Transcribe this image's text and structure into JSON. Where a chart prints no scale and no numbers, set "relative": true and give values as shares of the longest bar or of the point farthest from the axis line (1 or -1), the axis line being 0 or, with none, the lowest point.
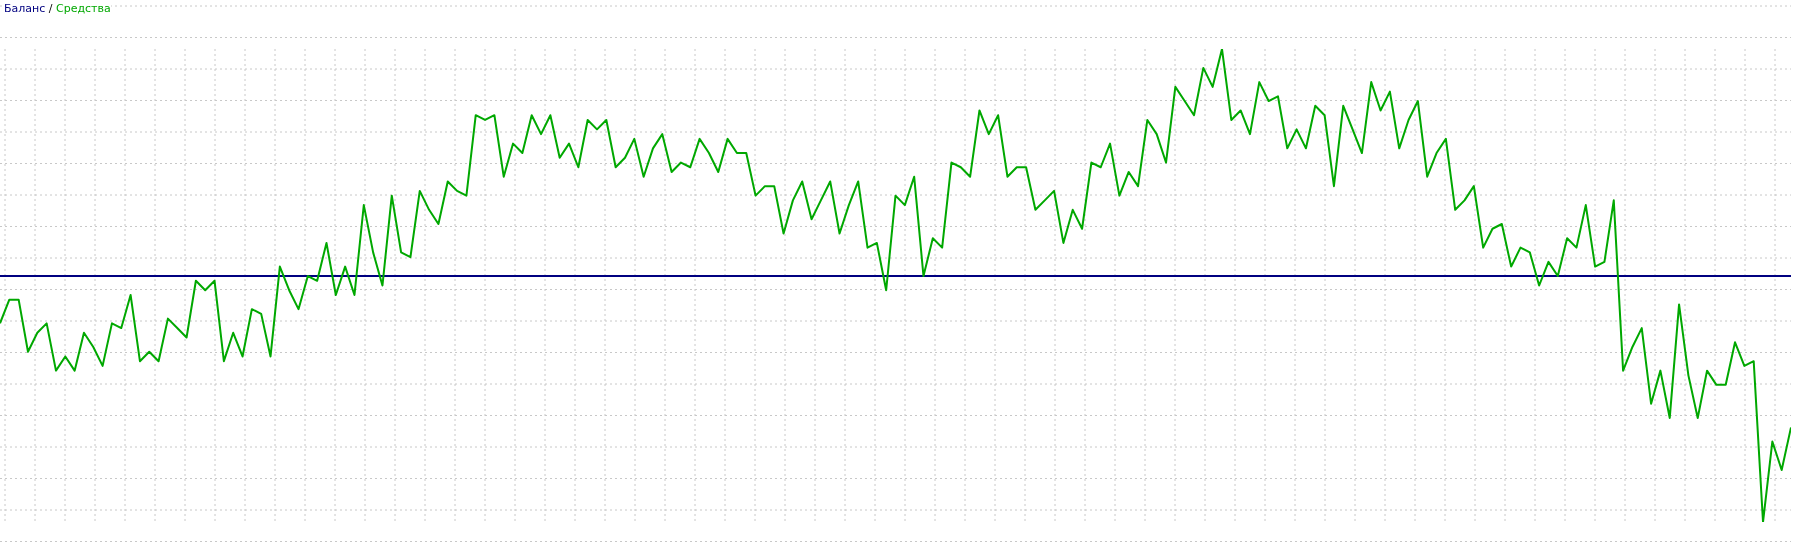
{
  "chart_data": {
    "type": "line",
    "relative": true,
    "grid": true,
    "legend": "top left",
    "marker": "none",
    "annotations": [
      "/"
    ],
    "line_style": "solid",
    "categories": [
      null,
      null,
      null,
      null,
      null,
      null,
      null,
      null,
      null,
      null,
      null,
      null,
      null,
      null,
      null,
      null,
      null,
      null,
      null,
      null,
      null,
      null,
      null,
      null,
      null,
      null,
      null,
      null,
      null,
      null,
      null,
      null,
      null,
      null,
      null,
      null,
      null,
      null,
      null,
      null,
      null,
      null,
      null,
      null,
      null,
      null,
      null,
      null,
      null,
      null,
      null,
      null,
      null,
      null,
      null,
      null,
      null,
      null,
      null,
      null,
      null,
      null,
      null,
      null,
      null,
      null,
      null,
      null,
      null,
      null,
      null,
      null,
      null,
      null,
      null,
      null,
      null,
      null,
      null,
      null,
      null,
      null,
      null,
      null,
      null,
      null,
      null,
      null,
      null,
      null,
      null,
      null,
      null,
      null,
      null,
      null,
      null,
      null,
      null,
      null,
      null,
      null,
      null,
      null,
      null,
      null,
      null,
      null,
      null,
      null,
      null,
      null,
      null,
      null,
      null,
      null,
      null,
      null,
      null,
      null,
      null,
      null,
      null,
      null,
      null,
      null,
      null,
      null,
      null,
      null,
      null,
      null,
      null,
      null,
      null,
      null,
      null,
      null,
      null,
      null,
      null,
      null,
      null,
      null,
      null,
      null,
      null,
      null,
      null,
      null,
      null,
      null,
      null,
      null,
      null,
      null,
      null,
      null,
      null,
      null,
      null,
      null,
      null,
      null,
      null,
      null,
      null,
      null,
      null,
      null,
      null,
      null,
      null,
      null,
      null,
      null,
      null,
      null,
      null,
      null,
      null,
      null,
      null,
      null,
      null,
      null,
      null,
      null,
      null,
      null,
      null,
      null,
      null
    ],
    "series": [
      {
        "name": "Баланс",
        "color": "#000080",
        "values": [
          0.52,
          0.52,
          0.52,
          0.52,
          0.52,
          0.52,
          0.52,
          0.52,
          0.52,
          0.52,
          0.52,
          0.52,
          0.52,
          0.52,
          0.52,
          0.52,
          0.52,
          0.52,
          0.52,
          0.52,
          0.52,
          0.52,
          0.52,
          0.52,
          0.52,
          0.52,
          0.52,
          0.52,
          0.52,
          0.52,
          0.52,
          0.52,
          0.52,
          0.52,
          0.52,
          0.52,
          0.52,
          0.52,
          0.52,
          0.52,
          0.52,
          0.52,
          0.52,
          0.52,
          0.52,
          0.52,
          0.52,
          0.52,
          0.52,
          0.52,
          0.52,
          0.52,
          0.52,
          0.52,
          0.52,
          0.52,
          0.52,
          0.52,
          0.52,
          0.52,
          0.52,
          0.52,
          0.52,
          0.52,
          0.52,
          0.52,
          0.52,
          0.52,
          0.52,
          0.52,
          0.52,
          0.52,
          0.52,
          0.52,
          0.52,
          0.52,
          0.52,
          0.52,
          0.52,
          0.52,
          0.52,
          0.52,
          0.52,
          0.52,
          0.52,
          0.52,
          0.52,
          0.52,
          0.52,
          0.52,
          0.52,
          0.52,
          0.52,
          0.52,
          0.52,
          0.52,
          0.52,
          0.52,
          0.52,
          0.52,
          0.52,
          0.52,
          0.52,
          0.52,
          0.52,
          0.52,
          0.52,
          0.52,
          0.52,
          0.52,
          0.52,
          0.52,
          0.52,
          0.52,
          0.52,
          0.52,
          0.52,
          0.52,
          0.52,
          0.52,
          0.52,
          0.52,
          0.52,
          0.52,
          0.52,
          0.52,
          0.52,
          0.52,
          0.52,
          0.52,
          0.52,
          0.52,
          0.52,
          0.52,
          0.52,
          0.52,
          0.52,
          0.52,
          0.52,
          0.52,
          0.52,
          0.52,
          0.52,
          0.52,
          0.52,
          0.52,
          0.52,
          0.52,
          0.52,
          0.52,
          0.52,
          0.52,
          0.52,
          0.52,
          0.52,
          0.52,
          0.52,
          0.52,
          0.52,
          0.52,
          0.52,
          0.52,
          0.52,
          0.52,
          0.52,
          0.52,
          0.52,
          0.52,
          0.52,
          0.52,
          0.52,
          0.52,
          0.52,
          0.52,
          0.52,
          0.52,
          0.52,
          0.52,
          0.52,
          0.52,
          0.52,
          0.52,
          0.52,
          0.52,
          0.52,
          0.52,
          0.52,
          0.52,
          0.52,
          0.52,
          0.52,
          0.52,
          0.52
        ]
      },
      {
        "name": "Средства",
        "color": "#00a800",
        "values": [
          0.42,
          0.47,
          0.47,
          0.36,
          0.4,
          0.42,
          0.32,
          0.35,
          0.32,
          0.4,
          0.37,
          0.33,
          0.42,
          0.41,
          0.48,
          0.34,
          0.36,
          0.34,
          0.43,
          0.41,
          0.39,
          0.51,
          0.49,
          0.51,
          0.34,
          0.4,
          0.35,
          0.45,
          0.44,
          0.35,
          0.54,
          0.49,
          0.45,
          0.52,
          0.51,
          0.59,
          0.48,
          0.54,
          0.48,
          0.67,
          0.57,
          0.5,
          0.69,
          0.57,
          0.56,
          0.7,
          0.66,
          0.63,
          0.72,
          0.7,
          0.69,
          0.86,
          0.85,
          0.86,
          0.73,
          0.8,
          0.78,
          0.86,
          0.82,
          0.86,
          0.77,
          0.8,
          0.75,
          0.85,
          0.83,
          0.85,
          0.75,
          0.77,
          0.81,
          0.73,
          0.79,
          0.82,
          0.74,
          0.76,
          0.75,
          0.81,
          0.78,
          0.74,
          0.81,
          0.78,
          0.78,
          0.69,
          0.71,
          0.71,
          0.61,
          0.68,
          0.72,
          0.64,
          0.68,
          0.72,
          0.61,
          0.67,
          0.72,
          0.58,
          0.59,
          0.49,
          0.69,
          0.67,
          0.73,
          0.52,
          0.6,
          0.58,
          0.76,
          0.75,
          0.73,
          0.87,
          0.82,
          0.86,
          0.73,
          0.75,
          0.75,
          0.66,
          0.68,
          0.7,
          0.59,
          0.66,
          0.62,
          0.76,
          0.75,
          0.8,
          0.69,
          0.74,
          0.71,
          0.85,
          0.82,
          0.76,
          0.92,
          0.89,
          0.86,
          0.96,
          0.92,
          1,
          0.85,
          0.87,
          0.82,
          0.93,
          0.89,
          0.9,
          0.79,
          0.83,
          0.79,
          0.88,
          0.86,
          0.71,
          0.88,
          0.83,
          0.78,
          0.93,
          0.87,
          0.91,
          0.79,
          0.85,
          0.89,
          0.73,
          0.78,
          0.81,
          0.66,
          0.68,
          0.71,
          0.58,
          0.62,
          0.63,
          0.54,
          0.58,
          0.57,
          0.5,
          0.55,
          0.52,
          0.6,
          0.58,
          0.67,
          0.54,
          0.55,
          0.68,
          0.32,
          0.37,
          0.41,
          0.25,
          0.32,
          0.22,
          0.46,
          0.31,
          0.22,
          0.32,
          0.29,
          0.29,
          0.38,
          0.33,
          0.34,
          0,
          0.17,
          0.11,
          0.2
        ]
      }
    ]
  }
}
